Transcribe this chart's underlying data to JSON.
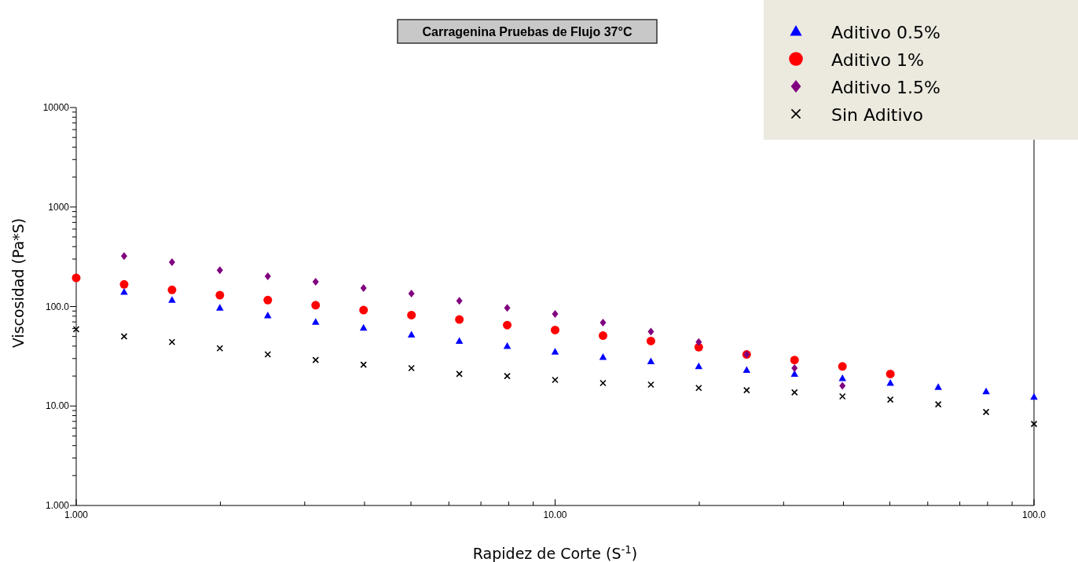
{
  "chart_data": {
    "type": "scatter",
    "title": "Carragenina Pruebas de Flujo 37°C",
    "xlabel": "Rapidez de Corte (S$^{-1}$)",
    "ylabel": "Viscosidad (Pa*S)",
    "log": "xy",
    "legend": "top right",
    "grid": false,
    "xlim": [
      1,
      100
    ],
    "ylim": [
      1,
      10000
    ],
    "xticks": [
      {
        "value": 1,
        "label": "1.000"
      },
      {
        "value": 2,
        "label": null
      },
      {
        "value": 3,
        "label": null
      },
      {
        "value": 4,
        "label": null
      },
      {
        "value": 5,
        "label": null
      },
      {
        "value": 6,
        "label": null
      },
      {
        "value": 7,
        "label": null
      },
      {
        "value": 8,
        "label": null
      },
      {
        "value": 9,
        "label": null
      },
      {
        "value": 10,
        "label": "10.00"
      },
      {
        "value": 20,
        "label": null
      },
      {
        "value": 30,
        "label": null
      },
      {
        "value": 40,
        "label": null
      },
      {
        "value": 50,
        "label": null
      },
      {
        "value": 60,
        "label": null
      },
      {
        "value": 70,
        "label": null
      },
      {
        "value": 80,
        "label": null
      },
      {
        "value": 90,
        "label": null
      },
      {
        "value": 100,
        "label": "100.0"
      }
    ],
    "yticks": [
      {
        "value": 1,
        "label": "1.000"
      },
      {
        "value": 2,
        "label": null
      },
      {
        "value": 3,
        "label": null
      },
      {
        "value": 4,
        "label": null
      },
      {
        "value": 5,
        "label": null
      },
      {
        "value": 6,
        "label": null
      },
      {
        "value": 7,
        "label": null
      },
      {
        "value": 8,
        "label": null
      },
      {
        "value": 9,
        "label": null
      },
      {
        "value": 10,
        "label": "10.00"
      },
      {
        "value": 20,
        "label": null
      },
      {
        "value": 30,
        "label": null
      },
      {
        "value": 40,
        "label": null
      },
      {
        "value": 50,
        "label": null
      },
      {
        "value": 60,
        "label": null
      },
      {
        "value": 70,
        "label": null
      },
      {
        "value": 80,
        "label": null
      },
      {
        "value": 90,
        "label": null
      },
      {
        "value": 100,
        "label": "100.0"
      },
      {
        "value": 200,
        "label": null
      },
      {
        "value": 300,
        "label": null
      },
      {
        "value": 400,
        "label": null
      },
      {
        "value": 500,
        "label": null
      },
      {
        "value": 600,
        "label": null
      },
      {
        "value": 700,
        "label": null
      },
      {
        "value": 800,
        "label": null
      },
      {
        "value": 900,
        "label": null
      },
      {
        "value": 1000,
        "label": "1000"
      },
      {
        "value": 2000,
        "label": null
      },
      {
        "value": 3000,
        "label": null
      },
      {
        "value": 4000,
        "label": null
      },
      {
        "value": 5000,
        "label": null
      },
      {
        "value": 6000,
        "label": null
      },
      {
        "value": 7000,
        "label": null
      },
      {
        "value": 8000,
        "label": null
      },
      {
        "value": 9000,
        "label": null
      },
      {
        "value": 10000,
        "label": "10000"
      }
    ],
    "series": [
      {
        "name": "Aditivo 0.5%",
        "color": "#0000ff",
        "marker": "triangle",
        "x": [
          1.259,
          1.585,
          1.995,
          2.512,
          3.162,
          3.981,
          5.012,
          6.31,
          7.943,
          10,
          12.59,
          15.85,
          19.95,
          25.12,
          31.62,
          39.81,
          50.12,
          63.1,
          79.43,
          100
        ],
        "values": [
          140,
          116,
          97,
          81,
          70,
          61,
          52,
          45,
          40,
          35,
          31,
          28,
          25,
          23,
          21,
          19,
          17,
          15.5,
          14,
          12.3
        ]
      },
      {
        "name": "Aditivo 1%",
        "color": "#ff0000",
        "marker": "circle",
        "x": [
          1,
          1.259,
          1.585,
          1.995,
          2.512,
          3.162,
          3.981,
          5.012,
          6.31,
          7.943,
          10,
          12.59,
          15.85,
          19.95,
          25.12,
          31.62,
          39.81,
          50.12
        ],
        "values": [
          194,
          167,
          147,
          130,
          116,
          103,
          92,
          82,
          74,
          65,
          58,
          51,
          45,
          39,
          33,
          29,
          25,
          21
        ]
      },
      {
        "name": "Aditivo 1.5%",
        "color": "#800080",
        "marker": "diamond",
        "x": [
          1.259,
          1.585,
          1.995,
          2.512,
          3.162,
          3.981,
          5.012,
          6.31,
          7.943,
          10,
          12.59,
          15.85,
          19.95,
          25.12,
          31.62,
          39.81
        ],
        "values": [
          322,
          279,
          232,
          201,
          177,
          153,
          135,
          114,
          97,
          84,
          69,
          56,
          44,
          33,
          24,
          16
        ]
      },
      {
        "name": "Sin Aditivo",
        "color": "#000000",
        "marker": "cross",
        "x": [
          1,
          1.259,
          1.585,
          1.995,
          2.512,
          3.162,
          3.981,
          5.012,
          6.31,
          7.943,
          10,
          12.59,
          15.85,
          19.95,
          25.12,
          31.62,
          39.81,
          50.12,
          63.1,
          79.43,
          100
        ],
        "values": [
          59,
          50,
          44,
          38,
          33,
          29,
          26,
          24,
          21,
          20,
          18.3,
          17,
          16.4,
          15.2,
          14.4,
          13.7,
          12.5,
          11.6,
          10.4,
          8.7,
          6.6
        ]
      }
    ]
  }
}
